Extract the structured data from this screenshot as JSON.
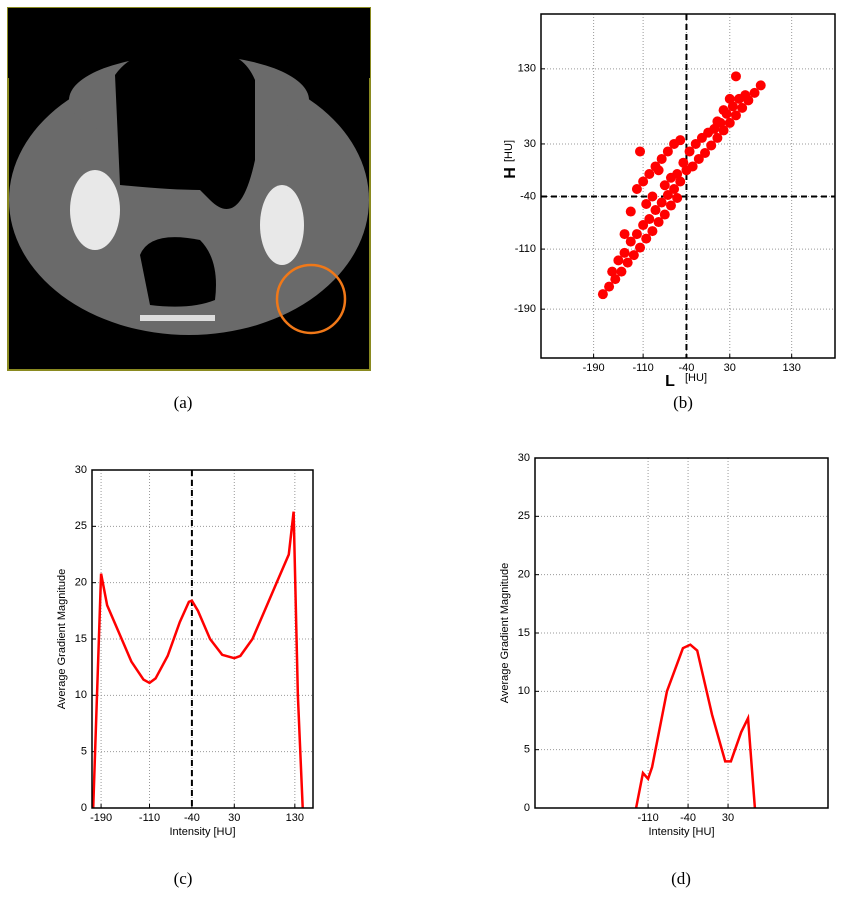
{
  "captions": [
    "(a)",
    "(b)",
    "(c)",
    "(d)"
  ],
  "chart_data": [
    {
      "type": "scatter",
      "color": "#ff0000",
      "grid": true,
      "xlabel_main": "L",
      "xlabel_unit": "[HU]",
      "ylabel_main": "H",
      "ylabel_unit": "[HU]",
      "xlim": [
        -275,
        200
      ],
      "ylim": [
        -255,
        203
      ],
      "xticks": [
        -190,
        -110,
        -40,
        30,
        130
      ],
      "yticks": [
        -190,
        -110,
        -40,
        30,
        130
      ],
      "xline": -40,
      "yline": -40,
      "x": [
        -175,
        -165,
        -155,
        -145,
        -135,
        -125,
        -115,
        -105,
        -95,
        -85,
        -75,
        -65,
        -55,
        -160,
        -150,
        -140,
        -130,
        -120,
        -110,
        -100,
        -90,
        -80,
        -70,
        -60,
        -50,
        -120,
        -110,
        -100,
        -90,
        -80,
        -70,
        -60,
        -50,
        -115,
        -105,
        -95,
        -85,
        -75,
        -65,
        -55,
        -45,
        -40,
        -30,
        -20,
        -10,
        0,
        10,
        20,
        30,
        40,
        50,
        60,
        70,
        80,
        -35,
        -25,
        -15,
        -5,
        5,
        15,
        25,
        35,
        45,
        55,
        10,
        20,
        30,
        40,
        -140,
        -130
      ],
      "y": [
        -170,
        -160,
        -150,
        -140,
        -128,
        -118,
        -108,
        -96,
        -86,
        -74,
        -64,
        -52,
        -42,
        -140,
        -125,
        -115,
        -100,
        -90,
        -78,
        -70,
        -58,
        -48,
        -38,
        -30,
        -20,
        -30,
        -20,
        -10,
        0,
        10,
        20,
        30,
        35,
        20,
        -50,
        -40,
        -5,
        -25,
        -15,
        -10,
        5,
        -5,
        0,
        10,
        18,
        28,
        38,
        48,
        58,
        68,
        78,
        88,
        98,
        108,
        20,
        30,
        38,
        45,
        50,
        58,
        70,
        80,
        90,
        95,
        60,
        75,
        90,
        120,
        -90,
        -60
      ]
    },
    {
      "type": "line",
      "color": "#ff0000",
      "grid": true,
      "xlabel": "Intensity [HU]",
      "ylabel": "Average Gradient Magnitude",
      "xlim": [
        -205,
        160
      ],
      "ylim": [
        0,
        30
      ],
      "xticks": [
        -190,
        -110,
        -40,
        30,
        130
      ],
      "yticks": [
        0,
        5,
        10,
        15,
        20,
        25,
        30
      ],
      "xline": -40,
      "x": [
        -203,
        -190,
        -180,
        -160,
        -140,
        -120,
        -110,
        -100,
        -80,
        -60,
        -45,
        -40,
        -30,
        -10,
        10,
        30,
        40,
        60,
        80,
        100,
        120,
        128,
        135,
        143
      ],
      "y": [
        0,
        20.8,
        18,
        15.5,
        13,
        11.4,
        11.1,
        11.5,
        13.5,
        16.5,
        18.3,
        18.4,
        17.5,
        15,
        13.6,
        13.3,
        13.5,
        15,
        17.5,
        20,
        22.5,
        26.3,
        10,
        0
      ]
    },
    {
      "type": "line",
      "color": "#ff0000",
      "grid": true,
      "xlabel": "Intensity [HU]",
      "ylabel": "Average Gradient Magnitude",
      "xlim": [
        -308,
        205
      ],
      "ylim": [
        0,
        30
      ],
      "xticks": [
        -110,
        -40,
        30
      ],
      "yticks": [
        0,
        5,
        10,
        15,
        20,
        25,
        30
      ],
      "x": [
        -131,
        -119,
        -110,
        -103,
        -77,
        -49,
        -36,
        -24,
        2,
        25,
        35,
        53,
        65,
        77
      ],
      "y": [
        0,
        3,
        2.5,
        3.5,
        10,
        13.7,
        14,
        13.5,
        8,
        4,
        4,
        6.5,
        7.7,
        0
      ]
    }
  ]
}
